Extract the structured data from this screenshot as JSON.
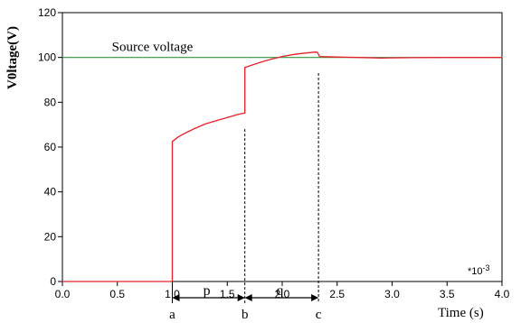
{
  "chart_data": {
    "type": "line",
    "xlabel": "Time (s)",
    "ylabel": "V0ltage(V)",
    "x_multiplier": "*10",
    "x_multiplier_exp": "-3",
    "xlim": [
      0,
      4.0
    ],
    "ylim": [
      0,
      120
    ],
    "x_ticks": [
      0.0,
      0.5,
      1.0,
      1.5,
      2.0,
      2.5,
      3.0,
      3.5,
      4.0
    ],
    "x_tick_labels": [
      "0.0",
      "0.5",
      "1.0",
      "1.5",
      "2.0",
      "2.5",
      "3.0",
      "3.5",
      "4.0"
    ],
    "y_ticks": [
      0,
      20,
      40,
      60,
      80,
      100,
      120
    ],
    "y_tick_labels": [
      "0",
      "20",
      "40",
      "60",
      "80",
      "100",
      "120"
    ],
    "grid": false,
    "reference_line": {
      "label": "Source voltage",
      "y": 100,
      "color": "#2e9a3a"
    },
    "series": [
      {
        "color": "#e8202a",
        "x": [
          0.0,
          1.0,
          1.0,
          1.02,
          1.05,
          1.1,
          1.15,
          1.2,
          1.3,
          1.4,
          1.5,
          1.6,
          1.66,
          1.66,
          1.7,
          1.8,
          1.9,
          2.0,
          2.1,
          2.2,
          2.3,
          2.32,
          2.34,
          2.4,
          2.5,
          2.7,
          2.9,
          3.0,
          3.2,
          3.5,
          3.8,
          4.0
        ],
        "y": [
          0,
          0,
          62.5,
          63.2,
          64.4,
          65.8,
          67.0,
          68.2,
          70.3,
          71.8,
          73.2,
          74.6,
          75.2,
          95.5,
          96.2,
          97.8,
          99.2,
          100.4,
          101.3,
          101.9,
          102.4,
          102.3,
          100.4,
          100.3,
          100.2,
          100.0,
          99.7,
          99.8,
          99.9,
          100.0,
          100.0,
          100.0
        ]
      }
    ],
    "annotations": {
      "markers": [
        {
          "label": "a",
          "x": 1.0,
          "y_top": null
        },
        {
          "label": "b",
          "x": 1.66,
          "y_top": 68
        },
        {
          "label": "c",
          "x": 2.33,
          "y_top": 93
        }
      ],
      "intervals": [
        {
          "label": "p",
          "from": 1.0,
          "to": 1.66
        },
        {
          "label": "q",
          "from": 1.66,
          "to": 2.33
        }
      ]
    }
  }
}
